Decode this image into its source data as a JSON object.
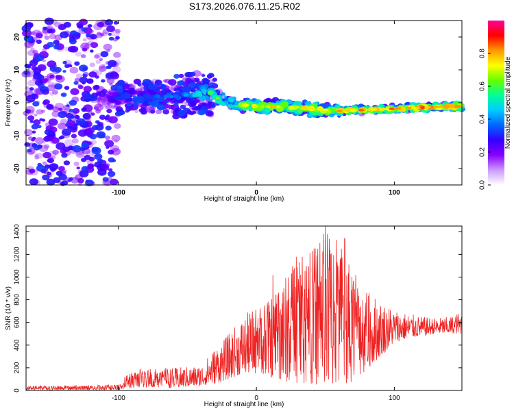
{
  "title": "S173.2026.076.11.25.R02",
  "chart_data": [
    {
      "type": "heatmap",
      "name": "spectrogram",
      "xlabel": "Height of straight line (km)",
      "ylabel": "Frequency (Hz)",
      "xlim": [
        -167,
        149
      ],
      "ylim": [
        -25,
        25
      ],
      "xticks": [
        -100,
        0,
        100
      ],
      "yticks": [
        -20,
        -10,
        0,
        10,
        20
      ],
      "colorbar": {
        "label": "Normalized spectral amplitude",
        "range": [
          0,
          1
        ],
        "ticks": [
          "0.0",
          "0.2",
          "0.4",
          "0.6",
          "0.8"
        ],
        "tick_values": [
          0,
          0.2,
          0.4,
          0.6,
          0.8
        ],
        "colors": [
          "#ffffff",
          "#cc99ff",
          "#8800ff",
          "#3300ff",
          "#0066ff",
          "#00ccff",
          "#00ff99",
          "#66ff00",
          "#ffff00",
          "#ff9900",
          "#ff0000",
          "#ff0099"
        ]
      },
      "ridge": {
        "x": [
          -167,
          -100,
          -60,
          -35,
          -20,
          0,
          20,
          60,
          100,
          149
        ],
        "y": [
          0,
          1.5,
          2,
          3,
          0,
          -1.2,
          -1.2,
          -2.5,
          -1.8,
          -1
        ]
      },
      "amplitude_profile": {
        "x": [
          -167,
          -120,
          -100,
          -50,
          -30,
          0,
          60,
          100,
          149
        ],
        "y": [
          0.05,
          0.12,
          0.35,
          0.45,
          0.7,
          0.8,
          0.85,
          0.9,
          0.95
        ]
      }
    },
    {
      "type": "line",
      "name": "snr",
      "xlabel": "Height of straight line (km)",
      "ylabel": "SNR (10 * v/v)",
      "xlim": [
        -167,
        149
      ],
      "ylim": [
        0,
        1450
      ],
      "xticks": [
        -100,
        0,
        100
      ],
      "yticks": [
        0,
        200,
        400,
        600,
        800,
        1000,
        1200,
        1400
      ],
      "color": "#ee2222",
      "envelope": {
        "x": [
          -167,
          -100,
          -92,
          -80,
          -60,
          -40,
          -30,
          -20,
          -10,
          0,
          10,
          20,
          30,
          40,
          45,
          50,
          55,
          60,
          70,
          80,
          90,
          100,
          110,
          120,
          130,
          140,
          149
        ],
        "low": [
          5,
          5,
          20,
          30,
          20,
          40,
          60,
          100,
          150,
          150,
          120,
          80,
          60,
          60,
          40,
          60,
          30,
          40,
          80,
          180,
          300,
          420,
          460,
          480,
          500,
          500,
          500
        ],
        "high": [
          40,
          50,
          180,
          200,
          200,
          220,
          380,
          500,
          650,
          750,
          800,
          1000,
          1180,
          1250,
          1300,
          1450,
          1350,
          1330,
          1100,
          900,
          800,
          720,
          680,
          650,
          640,
          650,
          700
        ]
      },
      "peaks": [
        {
          "x": 12,
          "y": 1020
        },
        {
          "x": 29,
          "y": 1180
        },
        {
          "x": 46,
          "y": 1300
        },
        {
          "x": 50,
          "y": 1450
        },
        {
          "x": 58,
          "y": 1330
        },
        {
          "x": 64,
          "y": 1340
        }
      ]
    }
  ]
}
